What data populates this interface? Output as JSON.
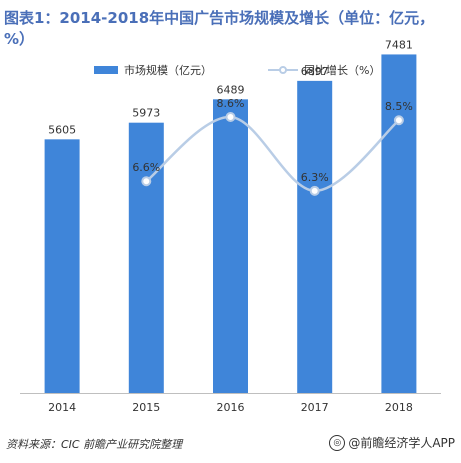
{
  "header": {
    "title": "图表1：2014-2018年中国广告市场规模及增长（单位：亿元，%）"
  },
  "footer": {
    "source": "资料来源：CIC 前瞻产业研究院整理",
    "brand": "@前瞻经济学人APP",
    "brand_icon": "watermark-logo-icon"
  },
  "colors": {
    "bar": "#3f85d9",
    "line": "#b9cde6",
    "marker_fill": "#ffffff",
    "marker_stroke": "#b9cde6"
  },
  "chart_data": {
    "type": "bar",
    "categories": [
      "2014",
      "2015",
      "2016",
      "2017",
      "2018"
    ],
    "series": [
      {
        "name": "市场规模（亿元）",
        "type": "bar",
        "axis": "left",
        "values": [
          5605,
          5973,
          6489,
          6897,
          7481
        ],
        "labels": [
          "5605",
          "5973",
          "6489",
          "6897",
          "7481"
        ]
      },
      {
        "name": "同比增长（%）",
        "type": "line",
        "axis": "right",
        "smooth": true,
        "values": [
          null,
          6.6,
          8.6,
          6.3,
          8.5
        ],
        "labels": [
          "",
          "6.6%",
          "8.6%",
          "6.3%",
          "8.5%"
        ]
      }
    ],
    "ylim": [
      0,
      7800
    ],
    "y2lim": [
      0,
      11
    ],
    "legend_position": "top",
    "grid": false
  }
}
